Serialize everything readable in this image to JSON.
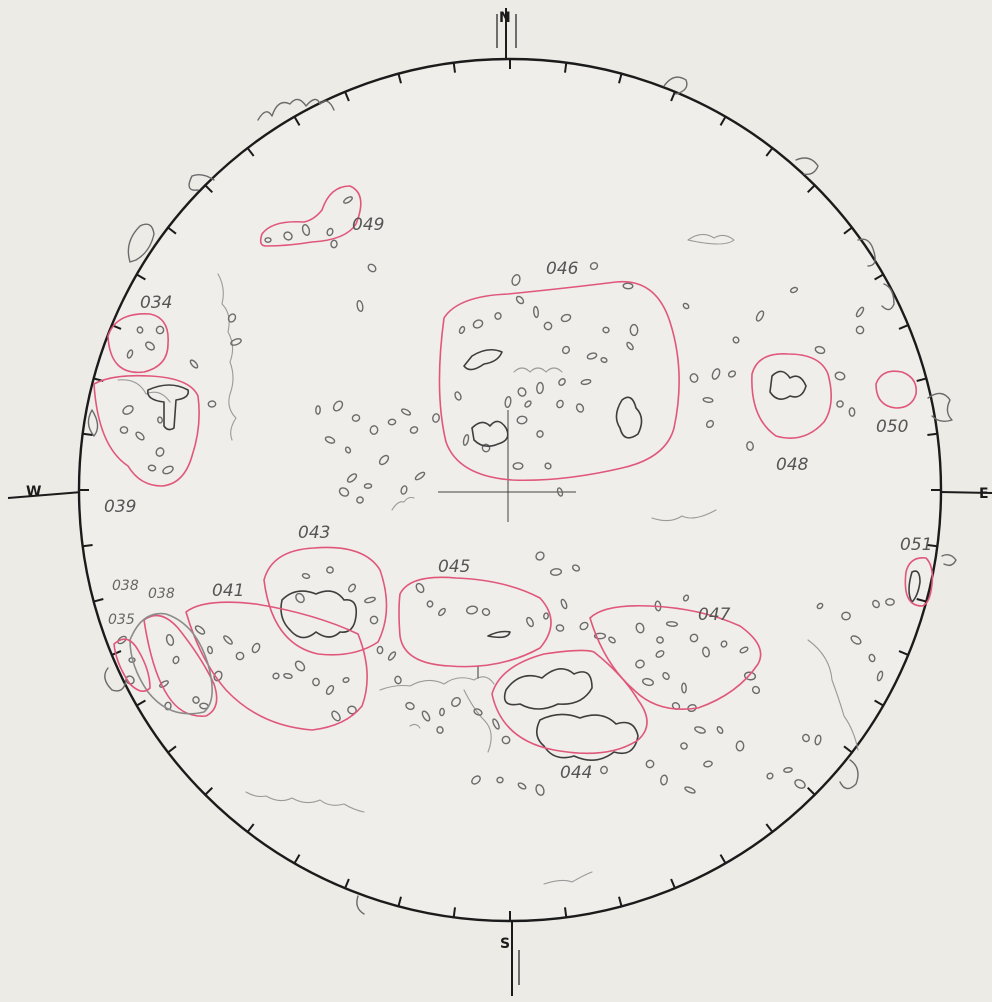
{
  "compass": {
    "north": "N",
    "south": "S",
    "east": "E",
    "west": "W"
  },
  "colors": {
    "paper": "#ecebe6",
    "limb": "#1b1b1b",
    "pencil": "#6b6b6b",
    "region_outline": "#e0577a"
  },
  "regions": [
    {
      "label": "049"
    },
    {
      "label": "046"
    },
    {
      "label": "034"
    },
    {
      "label": "039"
    },
    {
      "label": "048"
    },
    {
      "label": "050"
    },
    {
      "label": "051"
    },
    {
      "label": "043"
    },
    {
      "label": "045"
    },
    {
      "label": "047"
    },
    {
      "label": "041"
    },
    {
      "label": "038"
    },
    {
      "label": "038"
    },
    {
      "label": "035"
    },
    {
      "label": "044"
    }
  ]
}
